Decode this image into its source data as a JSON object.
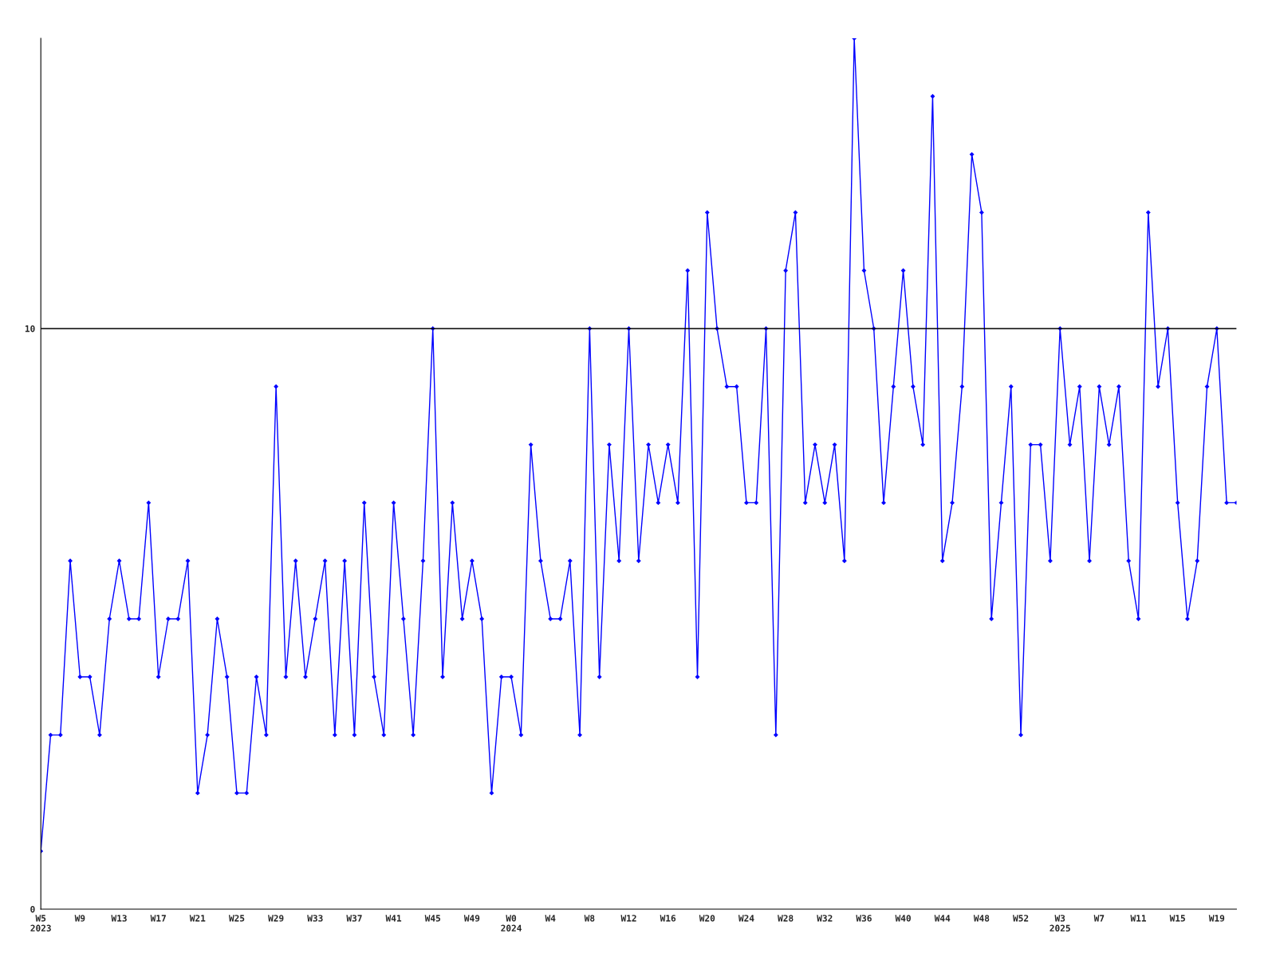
{
  "chart_data": {
    "type": "line",
    "categories": [
      "W5\n2023",
      null,
      null,
      null,
      "W9",
      null,
      null,
      null,
      "W13",
      null,
      null,
      null,
      "W17",
      null,
      null,
      null,
      "W21",
      null,
      null,
      null,
      "W25",
      null,
      null,
      null,
      "W29",
      null,
      null,
      null,
      "W33",
      null,
      null,
      null,
      "W37",
      null,
      null,
      null,
      "W41",
      null,
      null,
      null,
      "W45",
      null,
      null,
      null,
      "W49",
      null,
      null,
      null,
      "W0\n2024",
      null,
      null,
      null,
      "W4",
      null,
      null,
      null,
      "W8",
      null,
      null,
      null,
      "W12",
      null,
      null,
      null,
      "W16",
      null,
      null,
      null,
      "W20",
      null,
      null,
      null,
      "W24",
      null,
      null,
      null,
      "W28",
      null,
      null,
      null,
      "W32",
      null,
      null,
      null,
      "W36",
      null,
      null,
      null,
      "W40",
      null,
      null,
      null,
      "W44",
      null,
      null,
      null,
      "W48",
      null,
      null,
      null,
      "W52",
      null,
      null,
      null,
      "W3\n2025",
      null,
      null,
      null,
      "W7",
      null,
      null,
      null,
      "W11",
      null,
      null,
      null,
      "W15",
      null,
      null,
      null,
      "W19",
      null,
      null
    ],
    "series": [
      {
        "color": "#0000ff",
        "values": [
          1,
          3,
          3,
          6,
          4,
          4,
          3,
          5,
          6,
          5,
          5,
          7,
          4,
          5,
          5,
          6,
          2,
          3,
          5,
          4,
          2,
          2,
          4,
          3,
          9,
          4,
          6,
          4,
          5,
          6,
          3,
          6,
          3,
          7,
          4,
          3,
          7,
          5,
          3,
          6,
          10,
          4,
          7,
          5,
          6,
          5,
          2,
          4,
          4,
          3,
          8,
          6,
          5,
          5,
          6,
          3,
          10,
          4,
          8,
          6,
          10,
          6,
          8,
          7,
          8,
          7,
          11,
          4,
          12,
          10,
          9,
          9,
          7,
          7,
          10,
          3,
          11,
          12,
          7,
          8,
          7,
          8,
          6,
          15,
          11,
          10,
          7,
          9,
          11,
          9,
          8,
          14,
          6,
          7,
          9,
          13,
          12,
          5,
          7,
          9,
          3,
          8,
          8,
          6,
          10,
          8,
          9,
          6,
          9,
          8,
          9,
          6,
          5,
          12,
          9,
          10,
          7,
          5,
          6,
          9,
          10,
          7,
          7
        ]
      }
    ],
    "ylim": [
      0,
      15
    ],
    "yticks": [
      0,
      10
    ],
    "ref_lines": [
      {
        "axis": "y",
        "value": 10,
        "color": "#000000"
      }
    ],
    "marker": "diamond",
    "line_style": "solid",
    "grid": false,
    "legend": false
  }
}
